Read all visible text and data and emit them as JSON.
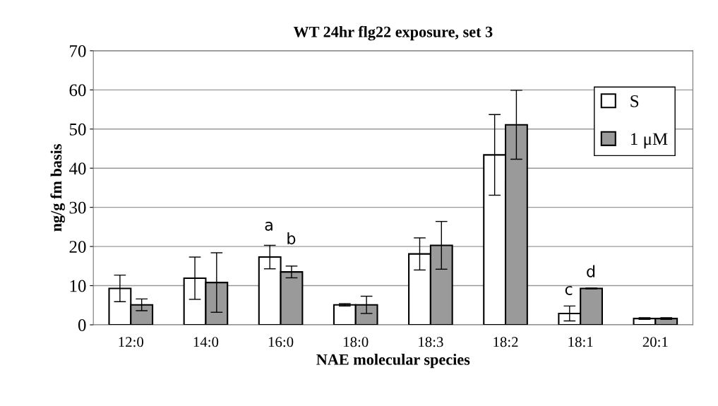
{
  "chart_data": {
    "type": "bar",
    "title": "WT 24hr flg22 exposure, set 3",
    "xlabel": "NAE molecular species",
    "ylabel": "ng/g fm basis",
    "categories": [
      "12:0",
      "14:0",
      "16:0",
      "18:0",
      "18:3",
      "18:2",
      "18:1",
      "20:1"
    ],
    "series": [
      {
        "name": "S",
        "color": "#ffffff",
        "values": [
          9.3,
          11.9,
          17.3,
          5.1,
          18.1,
          43.4,
          2.9,
          1.6
        ],
        "errors": [
          3.4,
          5.4,
          3.0,
          0.3,
          4.1,
          10.3,
          1.9,
          0.2
        ]
      },
      {
        "name": "1 μM",
        "color": "#9a9a9a",
        "values": [
          5.1,
          10.8,
          13.5,
          5.1,
          20.3,
          51.1,
          9.3,
          1.6
        ],
        "errors": [
          1.5,
          7.6,
          1.5,
          2.2,
          6.1,
          8.8,
          0.1,
          0.2
        ]
      }
    ],
    "annotations": [
      "a",
      "b",
      "c",
      "d"
    ],
    "ylim": [
      0,
      70
    ],
    "yticks": [
      0,
      10,
      20,
      30,
      40,
      50,
      60,
      70
    ],
    "grid": "y",
    "legend": "top right"
  }
}
